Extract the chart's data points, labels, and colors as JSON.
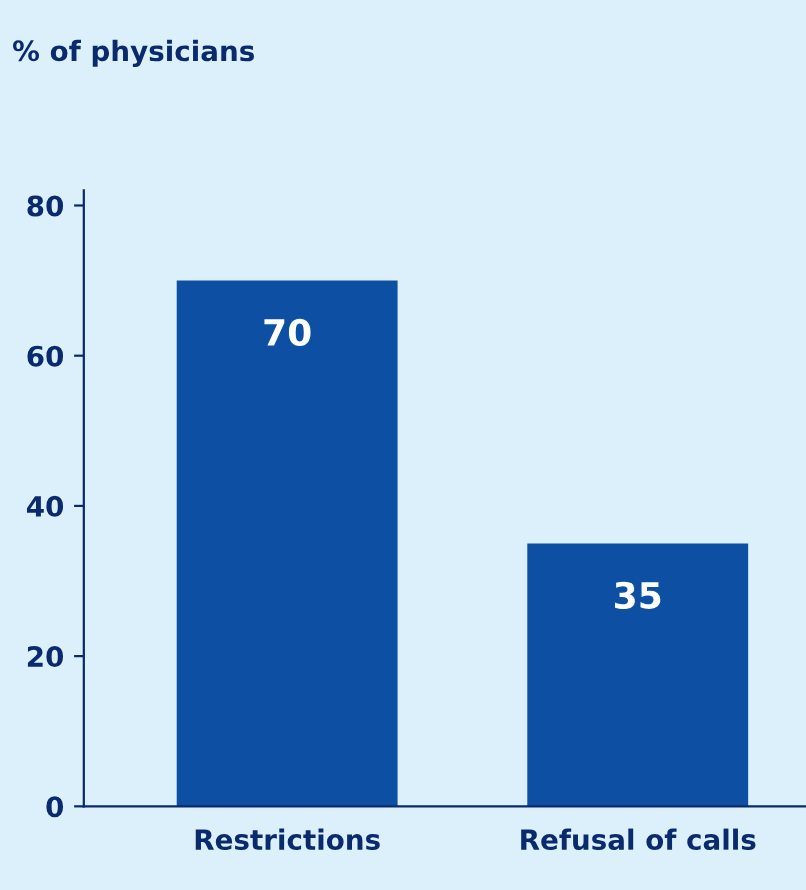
{
  "chart_data": {
    "type": "bar",
    "title": "% of physicians",
    "categories": [
      "Restrictions",
      "Refusal of calls"
    ],
    "values": [
      70,
      35
    ],
    "color": "#0d4fa3",
    "ylim": [
      0,
      82
    ],
    "yticks": [
      0,
      20,
      40,
      60,
      80
    ],
    "grid": false,
    "data_labels": true
  }
}
